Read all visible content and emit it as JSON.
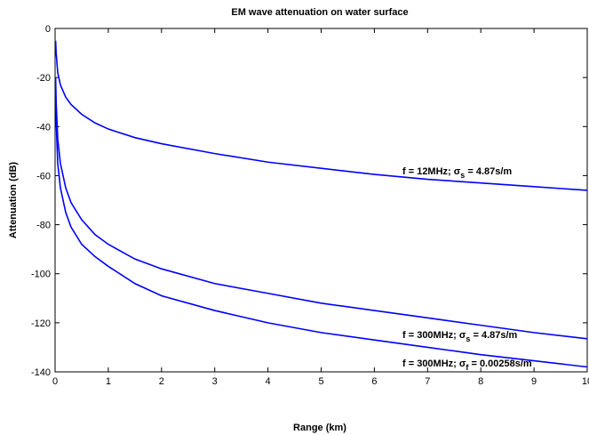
{
  "chart_data": {
    "type": "line",
    "title": "EM wave attenuation on water surface",
    "x_label": "Range (km)",
    "y_label": "Attenuation (dB)",
    "x": [
      0.01,
      0.02,
      0.05,
      0.1,
      0.2,
      0.3,
      0.5,
      0.75,
      1,
      1.5,
      2,
      3,
      4,
      5,
      6,
      7,
      8,
      9,
      10
    ],
    "series": [
      {
        "color": "#0000ff",
        "values": [
          -5,
          -10,
          -18,
          -23,
          -28,
          -31,
          -35,
          -38.5,
          -41,
          -44.5,
          -47,
          -51,
          -54.5,
          -57,
          -59.5,
          -61.5,
          -63,
          -64.5,
          -66
        ]
      },
      {
        "color": "#0000ff",
        "values": [
          -20,
          -30,
          -45,
          -55,
          -65,
          -71,
          -78,
          -84,
          -88,
          -94,
          -98,
          -104,
          -108,
          -112,
          -115,
          -118,
          -121,
          -124,
          -126.5
        ]
      },
      {
        "color": "#0000ff",
        "values": [
          -25,
          -38,
          -55,
          -65,
          -75,
          -81,
          -88,
          -93,
          -97,
          -104,
          -109,
          -115,
          -120,
          -124,
          -127,
          -130,
          -133,
          -135.5,
          -138
        ]
      }
    ],
    "annotations": [
      {
        "prefix": "f = 12MHz;  σ",
        "sub": "s",
        "suffix": " = 4.87s/m"
      },
      {
        "prefix": "f = 300MHz;  σ",
        "sub": "s",
        "suffix": " = 4.87s/m"
      },
      {
        "prefix": "f = 300MHz;  σ",
        "sub": "f",
        "suffix": " = 0.00258s/m"
      }
    ],
    "xlim": [
      0,
      10
    ],
    "ylim": [
      -140,
      0
    ],
    "xticks": [
      0,
      1,
      2,
      3,
      4,
      5,
      6,
      7,
      8,
      9,
      10
    ],
    "yticks": [
      -140,
      -120,
      -100,
      -80,
      -60,
      -40,
      -20,
      0
    ],
    "grid": false
  }
}
